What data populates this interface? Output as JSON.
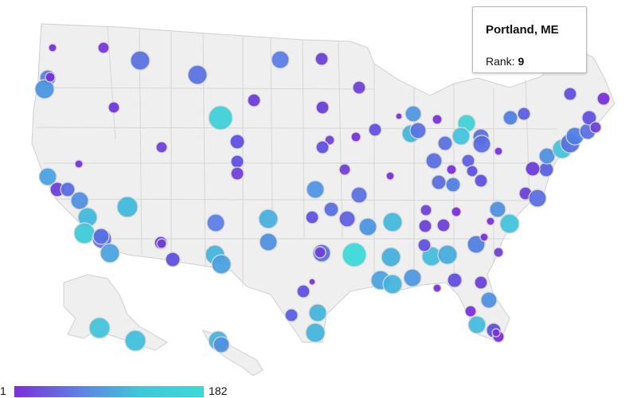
{
  "tooltip": {
    "title": "Portland, ME",
    "rank_label": "Rank: ",
    "rank_value": "9"
  },
  "legend": {
    "min": "1",
    "max": "182",
    "color_low": "#7b2fdc",
    "color_mid": "#5f7fe6",
    "color_high": "#3dd9d8"
  },
  "map": {
    "base_fill": "#efefef",
    "border_color": "#cfcfcf",
    "bubble_stroke": "#d9d9d9"
  }
}
